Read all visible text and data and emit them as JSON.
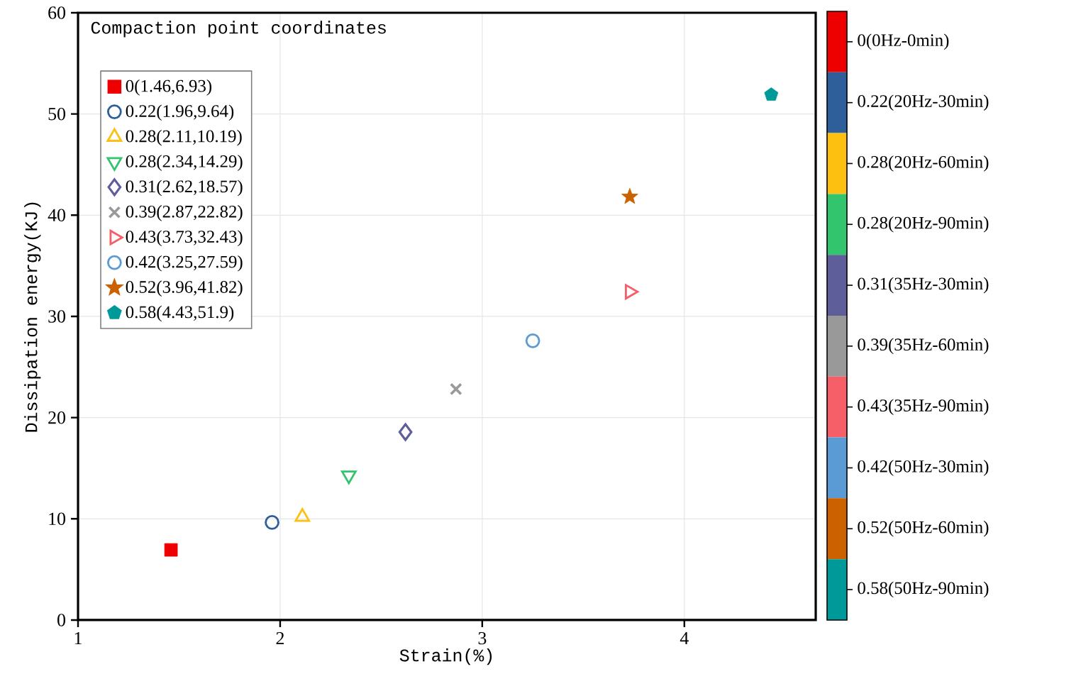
{
  "chart_data": [
    {
      "type": "scatter",
      "xlabel": "Strain(%)",
      "ylabel": "Dissipation energy(KJ)",
      "legend_title": "Compaction point coordinates",
      "legend": "top left",
      "grid": true,
      "xlim": [
        1,
        4.65
      ],
      "ylim": [
        0,
        60
      ],
      "xticks": [
        1,
        2,
        3,
        4
      ],
      "yticks": [
        0,
        10,
        20,
        30,
        40,
        50,
        60
      ],
      "series": [
        {
          "name": "0(1.46,6.93)",
          "color": "#ee0000",
          "marker": "square",
          "x": [
            1.46
          ],
          "values": [
            6.93
          ]
        },
        {
          "name": "0.22(1.96,9.64)",
          "color": "#2f5f9a",
          "marker": "circle",
          "x": [
            1.96
          ],
          "values": [
            9.64
          ]
        },
        {
          "name": "0.28(2.11,10.19)",
          "color": "#fdc010",
          "marker": "triangle",
          "x": [
            2.11
          ],
          "values": [
            10.19
          ]
        },
        {
          "name": "0.28(2.34,14.29)",
          "color": "#33c46e",
          "marker": "triangle down",
          "x": [
            2.34
          ],
          "values": [
            14.29
          ]
        },
        {
          "name": "0.31(2.62,18.57)",
          "color": "#5e5f9a",
          "marker": "diamond",
          "x": [
            2.62
          ],
          "values": [
            18.57
          ]
        },
        {
          "name": "0.39(2.87,22.82)",
          "color": "#999999",
          "marker": "cross",
          "x": [
            2.87
          ],
          "values": [
            22.82
          ]
        },
        {
          "name": "0.43(3.73,32.43)",
          "color": "#f65e68",
          "marker": "triangle right",
          "x": [
            3.73
          ],
          "values": [
            32.43
          ]
        },
        {
          "name": "0.42(3.25,27.59)",
          "color": "#5b9bd5",
          "marker": "circle",
          "x": [
            3.25
          ],
          "values": [
            27.59
          ]
        },
        {
          "name": "0.52(3.96,41.82)",
          "color": "#cc6100",
          "marker": "star",
          "x": [
            3.73
          ],
          "values": [
            41.82
          ]
        },
        {
          "name": "0.58(4.43,51.9)",
          "color": "#009999",
          "x": [
            4.43
          ],
          "values": [
            51.9
          ]
        }
      ]
    },
    {
      "type": "other",
      "categories": [
        "0(0Hz-0min)",
        "0.22(20Hz-30min)",
        "0.28(20Hz-60min)",
        "0.28(20Hz-90min)",
        "0.31(35Hz-30min)",
        "0.39(35Hz-60min)",
        "0.43(35Hz-90min)",
        "0.42(50Hz-30min)",
        "0.52(50Hz-60min)",
        "0.58(50Hz-90min)"
      ],
      "colors": [
        "#ee0000",
        "#2f5f9a",
        "#fdc010",
        "#33c46e",
        "#5e5f9a",
        "#999999",
        "#f65e68",
        "#5b9bd5",
        "#cc6100",
        "#009999"
      ]
    }
  ]
}
